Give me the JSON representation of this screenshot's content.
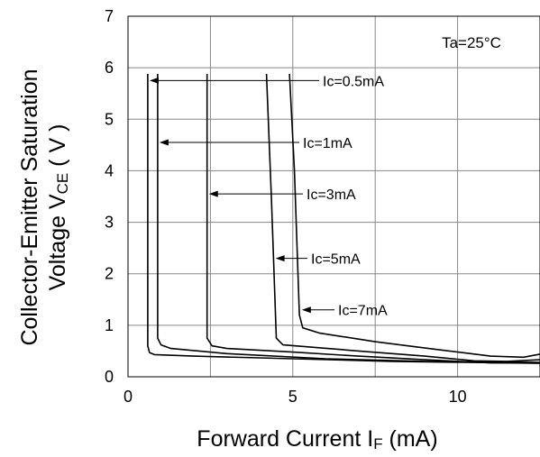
{
  "chart_data": {
    "type": "line",
    "xlabel": "Forward Current I",
    "xlabel_sub": "F",
    "xlabel_unit": " (mA)",
    "ylabel_line1": "Collector-Emitter Saturation",
    "ylabel_line2_prefix": "Voltage V",
    "ylabel_line2_sub": "CE",
    "ylabel_line2_unit": " ( V )",
    "xlim": [
      0,
      12.5
    ],
    "ylim": [
      0,
      7
    ],
    "xticks": [
      "0",
      "5",
      "10"
    ],
    "yticks": [
      "0",
      "1",
      "2",
      "3",
      "4",
      "5",
      "6",
      "7"
    ],
    "grid": true,
    "condition": "Ta=25°C",
    "series": [
      {
        "name": "Ic=0.5mA",
        "points": [
          [
            0.6,
            5.88
          ],
          [
            0.6,
            0.6
          ],
          [
            0.65,
            0.47
          ],
          [
            0.8,
            0.43
          ],
          [
            2.0,
            0.4
          ],
          [
            5.0,
            0.35
          ],
          [
            8.0,
            0.3
          ],
          [
            12.5,
            0.26
          ]
        ],
        "label_y": 5.75,
        "arrow_at": [
          0.6,
          5.75
        ]
      },
      {
        "name": "Ic=1mA",
        "points": [
          [
            0.9,
            5.88
          ],
          [
            0.9,
            0.75
          ],
          [
            1.0,
            0.62
          ],
          [
            1.3,
            0.55
          ],
          [
            3.0,
            0.45
          ],
          [
            6.0,
            0.35
          ],
          [
            9.0,
            0.3
          ],
          [
            12.5,
            0.28
          ]
        ],
        "label_y": 4.55,
        "arrow_at": [
          0.9,
          4.55
        ]
      },
      {
        "name": "Ic=3mA",
        "points": [
          [
            2.4,
            5.88
          ],
          [
            2.4,
            0.75
          ],
          [
            2.55,
            0.6
          ],
          [
            3.0,
            0.55
          ],
          [
            5.0,
            0.48
          ],
          [
            7.0,
            0.4
          ],
          [
            9.0,
            0.33
          ],
          [
            11.0,
            0.27
          ],
          [
            12.5,
            0.27
          ]
        ],
        "label_y": 3.55,
        "arrow_at": [
          2.4,
          3.55
        ]
      },
      {
        "name": "Ic=5mA",
        "points": [
          [
            4.2,
            5.88
          ],
          [
            4.35,
            3.5
          ],
          [
            4.5,
            0.75
          ],
          [
            4.7,
            0.62
          ],
          [
            5.5,
            0.58
          ],
          [
            7.0,
            0.5
          ],
          [
            9.0,
            0.4
          ],
          [
            10.5,
            0.31
          ],
          [
            11.5,
            0.3
          ],
          [
            12.5,
            0.33
          ]
        ],
        "label_y": 2.3,
        "arrow_at": [
          4.42,
          2.3
        ]
      },
      {
        "name": "Ic=7mA",
        "points": [
          [
            4.9,
            5.88
          ],
          [
            5.05,
            4.0
          ],
          [
            5.2,
            1.2
          ],
          [
            5.3,
            0.95
          ],
          [
            5.8,
            0.85
          ],
          [
            7.5,
            0.68
          ],
          [
            9.5,
            0.52
          ],
          [
            11.0,
            0.4
          ],
          [
            12.0,
            0.38
          ],
          [
            12.5,
            0.44
          ]
        ],
        "label_y": 1.3,
        "arrow_at": [
          5.22,
          1.3
        ]
      }
    ]
  }
}
